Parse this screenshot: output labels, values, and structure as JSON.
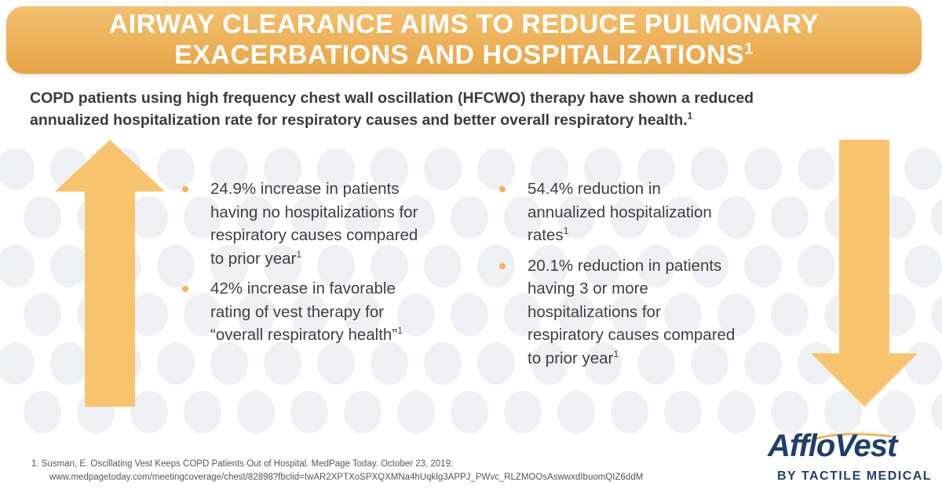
{
  "banner": {
    "line1": "AIRWAY CLEARANCE AIMS TO REDUCE PULMONARY",
    "line2": "EXACERBATIONS AND HOSPITALIZATIONS",
    "ref": "1"
  },
  "intro": {
    "line1": "COPD patients using high frequency chest wall oscillation (HFCWO) therapy have shown a reduced",
    "line2": "annualized hospitalization rate for respiratory causes and better overall respiratory health.",
    "ref": "1"
  },
  "left_bullets": [
    {
      "lines": [
        "24.9% increase in patients",
        "having no hospitalizations for",
        "respiratory causes compared",
        "to prior year"
      ],
      "ref": "1"
    },
    {
      "lines": [
        "42% increase in favorable",
        "rating of vest therapy for",
        "“overall respiratory health”"
      ],
      "ref": "1"
    }
  ],
  "right_bullets": [
    {
      "lines": [
        "54.4% reduction in",
        "annualized hospitalization",
        "rates"
      ],
      "ref": "1"
    },
    {
      "lines": [
        "20.1% reduction in patients",
        "having 3 or more",
        "hospitalizations for",
        "respiratory causes compared",
        "to prior year"
      ],
      "ref": "1"
    }
  ],
  "footnote": {
    "line1": "1. Susman, E. Oscillating Vest Keeps COPD Patients Out of Hospital. MedPage Today. October 23, 2019.",
    "line2": "www.medpagetoday.com/meetingcoverage/chest/82898?fbclid=IwAR2XPTXoSPXQXMNa4hUqklg3APPJ_PWvc_RLZMOOsAswwxdIbuomQIZ6ddM"
  },
  "logo": {
    "brand": "AffloVest",
    "tagline": "BY TACTILE MEDICAL"
  },
  "colors": {
    "accent": "#f1b552",
    "arrow": "#f7c46d",
    "brand_navy": "#1e3f6e"
  }
}
